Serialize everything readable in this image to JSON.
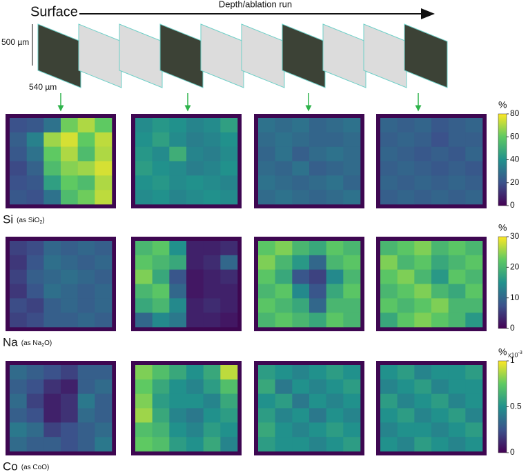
{
  "header": {
    "surface": "Surface",
    "arrow_label": "Depth/ablation run",
    "height": "500 µm",
    "width": "540 µm"
  },
  "chart_data": [
    {
      "type": "heatmap",
      "label": "Si",
      "note": "(as SiO",
      "note_sub": "2",
      "note_end": ")",
      "unit": "%",
      "colormap": "viridis",
      "clim": [
        0,
        80
      ],
      "cticks": [
        0,
        20,
        40,
        60,
        80
      ],
      "maps": [
        [
          [
            20,
            22,
            30,
            62,
            70,
            60
          ],
          [
            24,
            35,
            68,
            75,
            60,
            72
          ],
          [
            22,
            30,
            60,
            70,
            55,
            70
          ],
          [
            18,
            25,
            55,
            65,
            68,
            75
          ],
          [
            20,
            22,
            45,
            60,
            55,
            70
          ],
          [
            22,
            20,
            30,
            55,
            62,
            72
          ]
        ],
        [
          [
            38,
            42,
            40,
            36,
            38,
            45
          ],
          [
            40,
            45,
            38,
            34,
            36,
            40
          ],
          [
            42,
            38,
            50,
            36,
            34,
            38
          ],
          [
            44,
            40,
            38,
            34,
            36,
            40
          ],
          [
            40,
            42,
            38,
            40,
            38,
            36
          ],
          [
            38,
            40,
            36,
            38,
            40,
            38
          ]
        ],
        [
          [
            30,
            28,
            30,
            26,
            28,
            30
          ],
          [
            28,
            30,
            28,
            26,
            26,
            28
          ],
          [
            26,
            30,
            24,
            28,
            30,
            28
          ],
          [
            28,
            26,
            30,
            24,
            26,
            28
          ],
          [
            30,
            28,
            26,
            28,
            30,
            26
          ],
          [
            28,
            30,
            28,
            26,
            28,
            30
          ]
        ],
        [
          [
            26,
            24,
            26,
            22,
            24,
            26
          ],
          [
            24,
            26,
            24,
            20,
            24,
            24
          ],
          [
            26,
            24,
            22,
            24,
            22,
            26
          ],
          [
            24,
            26,
            24,
            22,
            24,
            22
          ],
          [
            26,
            24,
            26,
            24,
            26,
            24
          ],
          [
            24,
            26,
            24,
            26,
            24,
            26
          ]
        ]
      ]
    },
    {
      "type": "heatmap",
      "label": "Na",
      "note": "(as Na",
      "note_sub": "2",
      "note_end": "O)",
      "unit": "%",
      "colormap": "viridis",
      "clim": [
        0,
        30
      ],
      "cticks": [
        0,
        10,
        20,
        30
      ],
      "maps": [
        [
          [
            6,
            7,
            10,
            9,
            10,
            9
          ],
          [
            5,
            8,
            11,
            10,
            9,
            10
          ],
          [
            6,
            9,
            10,
            11,
            10,
            9
          ],
          [
            5,
            8,
            11,
            10,
            9,
            10
          ],
          [
            7,
            6,
            9,
            10,
            9,
            10
          ],
          [
            6,
            7,
            9,
            9,
            10,
            9
          ]
        ],
        [
          [
            20,
            22,
            15,
            3,
            3,
            4
          ],
          [
            22,
            20,
            18,
            3,
            4,
            10
          ],
          [
            24,
            18,
            8,
            2,
            3,
            4
          ],
          [
            20,
            22,
            10,
            2,
            3,
            3
          ],
          [
            18,
            20,
            14,
            3,
            4,
            3
          ],
          [
            10,
            14,
            12,
            3,
            3,
            2
          ]
        ],
        [
          [
            22,
            24,
            20,
            18,
            22,
            20
          ],
          [
            24,
            20,
            16,
            10,
            20,
            22
          ],
          [
            22,
            18,
            8,
            6,
            14,
            20
          ],
          [
            20,
            22,
            14,
            8,
            18,
            22
          ],
          [
            22,
            20,
            18,
            10,
            20,
            20
          ],
          [
            20,
            22,
            20,
            18,
            22,
            20
          ]
        ],
        [
          [
            20,
            22,
            24,
            20,
            22,
            20
          ],
          [
            24,
            20,
            22,
            18,
            20,
            22
          ],
          [
            22,
            24,
            20,
            16,
            22,
            20
          ],
          [
            20,
            22,
            24,
            20,
            18,
            22
          ],
          [
            22,
            20,
            22,
            24,
            20,
            20
          ],
          [
            18,
            22,
            24,
            22,
            20,
            16
          ]
        ]
      ]
    },
    {
      "type": "heatmap",
      "label": "Co",
      "note": "(as CoO)",
      "unit": "%",
      "multiplier": "x10",
      "multiplier_exp": "-3",
      "colormap": "viridis",
      "clim": [
        0,
        1
      ],
      "cticks": [
        0,
        0.5,
        1
      ],
      "maps": [
        [
          [
            0.35,
            0.3,
            0.25,
            0.2,
            0.3,
            0.3
          ],
          [
            0.3,
            0.25,
            0.15,
            0.1,
            0.3,
            0.35
          ],
          [
            0.35,
            0.2,
            0.1,
            0.15,
            0.4,
            0.3
          ],
          [
            0.3,
            0.25,
            0.1,
            0.15,
            0.35,
            0.3
          ],
          [
            0.4,
            0.35,
            0.2,
            0.25,
            0.3,
            0.35
          ],
          [
            0.35,
            0.3,
            0.3,
            0.25,
            0.3,
            0.4
          ]
        ],
        [
          [
            0.8,
            0.7,
            0.6,
            0.5,
            0.6,
            0.9
          ],
          [
            0.75,
            0.6,
            0.5,
            0.45,
            0.55,
            0.7
          ],
          [
            0.8,
            0.55,
            0.5,
            0.5,
            0.45,
            0.6
          ],
          [
            0.85,
            0.6,
            0.45,
            0.4,
            0.5,
            0.55
          ],
          [
            0.7,
            0.65,
            0.5,
            0.45,
            0.55,
            0.5
          ],
          [
            0.75,
            0.7,
            0.55,
            0.5,
            0.6,
            0.45
          ]
        ],
        [
          [
            0.55,
            0.5,
            0.45,
            0.5,
            0.55,
            0.5
          ],
          [
            0.6,
            0.4,
            0.5,
            0.45,
            0.5,
            0.55
          ],
          [
            0.5,
            0.55,
            0.4,
            0.5,
            0.45,
            0.5
          ],
          [
            0.55,
            0.45,
            0.5,
            0.4,
            0.5,
            0.45
          ],
          [
            0.6,
            0.5,
            0.45,
            0.5,
            0.55,
            0.5
          ],
          [
            0.55,
            0.5,
            0.5,
            0.45,
            0.5,
            0.55
          ]
        ],
        [
          [
            0.5,
            0.55,
            0.45,
            0.5,
            0.5,
            0.55
          ],
          [
            0.45,
            0.5,
            0.55,
            0.45,
            0.5,
            0.5
          ],
          [
            0.55,
            0.45,
            0.5,
            0.55,
            0.45,
            0.5
          ],
          [
            0.5,
            0.55,
            0.45,
            0.5,
            0.55,
            0.45
          ],
          [
            0.45,
            0.5,
            0.5,
            0.45,
            0.5,
            0.55
          ],
          [
            0.5,
            0.45,
            0.55,
            0.5,
            0.45,
            0.5
          ]
        ]
      ]
    }
  ]
}
